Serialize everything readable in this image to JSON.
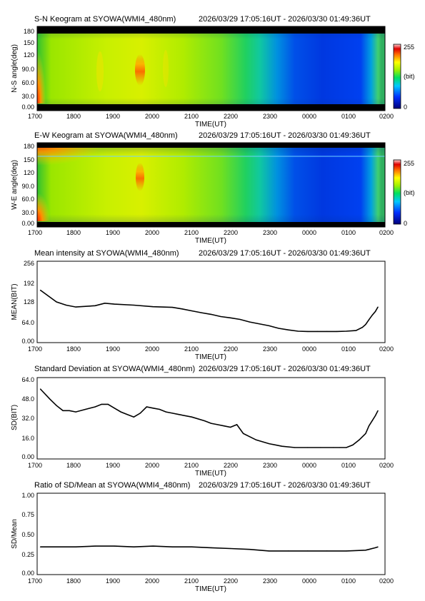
{
  "x_axis": {
    "label": "TIME(UT)",
    "ticks": [
      "1700",
      "1800",
      "1900",
      "2000",
      "2100",
      "2200",
      "2300",
      "0000",
      "0100",
      "0200"
    ]
  },
  "time_range": "2026/03/29 17:05:16UT - 2026/03/30 01:49:36UT",
  "colorbar": {
    "max_label": "255",
    "mid_label": "(bit)",
    "min_label": "0"
  },
  "panels": [
    {
      "kind": "keogram",
      "title": "S-N Keogram at SYOWA(WMI4_480nm)",
      "ylabel": "N-S angle(deg)",
      "yticks": [
        "180",
        "150",
        "120",
        "90.0",
        "60.0",
        "30.0",
        "0.00"
      ]
    },
    {
      "kind": "keogram",
      "title": "E-W Keogram at SYOWA(WMI4_480nm)",
      "ylabel": "W-E angle(deg)",
      "yticks": [
        "180",
        "150",
        "120",
        "90.0",
        "60.0",
        "30.0",
        "0.00"
      ]
    },
    {
      "kind": "line",
      "title": "Mean intensity at SYOWA(WMI4_480nm)",
      "ylabel": "MEAN(BIT)",
      "yticks": [
        "256",
        "192",
        "128",
        "64.0",
        "0.00"
      ]
    },
    {
      "kind": "line",
      "title": "Standard Deviation at SYOWA(WMI4_480nm)",
      "ylabel": "SD(BIT)",
      "yticks": [
        "64.0",
        "48.0",
        "32.0",
        "16.0",
        "0.00"
      ]
    },
    {
      "kind": "line",
      "title": "Ratio of SD/Mean at SYOWA(WMI4_480nm)",
      "ylabel": "SD/Mean",
      "yticks": [
        "1.00",
        "0.75",
        "0.50",
        "0.25",
        "0.00"
      ]
    }
  ],
  "chart_data": [
    {
      "type": "line",
      "title": "Mean intensity at SYOWA(WMI4_480nm)",
      "xlabel": "TIME(UT)",
      "ylabel": "MEAN(BIT)",
      "xlim": [
        "2026-03-29 17:00",
        "2026-03-30 02:00"
      ],
      "ylim": [
        0,
        256
      ],
      "x": [
        "17:05",
        "17:30",
        "17:45",
        "18:00",
        "18:30",
        "18:45",
        "19:00",
        "19:30",
        "20:00",
        "20:30",
        "20:45",
        "21:00",
        "21:15",
        "21:30",
        "21:45",
        "22:00",
        "22:15",
        "22:30",
        "23:00",
        "23:15",
        "23:30",
        "23:45",
        "00:00",
        "00:15",
        "00:30",
        "00:45",
        "01:00",
        "01:15",
        "01:25",
        "01:30",
        "01:35",
        "01:40",
        "01:45",
        "01:49"
      ],
      "values": [
        165,
        128,
        118,
        112,
        116,
        124,
        121,
        118,
        113,
        111,
        106,
        100,
        94,
        89,
        82,
        78,
        73,
        65,
        53,
        45,
        40,
        36,
        35,
        35,
        35,
        35,
        36,
        38,
        48,
        57,
        72,
        86,
        98,
        112
      ]
    },
    {
      "type": "line",
      "title": "Standard Deviation at SYOWA(WMI4_480nm)",
      "xlabel": "TIME(UT)",
      "ylabel": "SD(BIT)",
      "xlim": [
        "2026-03-29 17:00",
        "2026-03-30 02:00"
      ],
      "ylim": [
        0,
        64
      ],
      "x": [
        "17:05",
        "17:20",
        "17:30",
        "17:40",
        "17:50",
        "18:00",
        "18:15",
        "18:30",
        "18:40",
        "18:50",
        "19:00",
        "19:10",
        "19:20",
        "19:30",
        "19:40",
        "19:50",
        "20:00",
        "20:10",
        "20:20",
        "20:30",
        "20:40",
        "21:00",
        "21:20",
        "21:30",
        "21:40",
        "21:50",
        "22:00",
        "22:10",
        "22:20",
        "22:40",
        "23:00",
        "23:20",
        "23:40",
        "00:00",
        "00:20",
        "00:40",
        "00:50",
        "01:00",
        "01:10",
        "01:20",
        "01:30",
        "01:35",
        "01:40",
        "01:45",
        "01:49"
      ],
      "values": [
        55,
        47,
        42,
        38,
        38,
        37,
        39,
        41,
        43,
        43,
        40,
        37,
        35,
        33,
        36,
        41,
        40,
        39,
        37,
        36,
        35,
        33,
        30,
        28,
        27,
        26,
        25,
        27,
        20,
        15,
        12,
        10,
        9,
        9,
        9,
        9,
        9,
        9,
        11,
        15,
        20,
        26,
        30,
        34,
        38
      ]
    },
    {
      "type": "line",
      "title": "Ratio of SD/Mean at SYOWA(WMI4_480nm)",
      "xlabel": "TIME(UT)",
      "ylabel": "SD/Mean",
      "xlim": [
        "2026-03-29 17:00",
        "2026-03-30 02:00"
      ],
      "ylim": [
        0,
        1
      ],
      "x": [
        "17:05",
        "17:30",
        "18:00",
        "18:30",
        "19:00",
        "19:30",
        "20:00",
        "20:30",
        "21:00",
        "21:30",
        "22:00",
        "22:30",
        "23:00",
        "23:30",
        "00:00",
        "00:30",
        "01:00",
        "01:30",
        "01:35",
        "01:40",
        "01:45",
        "01:49"
      ],
      "values": [
        0.34,
        0.34,
        0.34,
        0.35,
        0.35,
        0.34,
        0.35,
        0.34,
        0.34,
        0.33,
        0.32,
        0.31,
        0.29,
        0.29,
        0.29,
        0.29,
        0.29,
        0.3,
        0.31,
        0.32,
        0.33,
        0.34
      ]
    }
  ]
}
